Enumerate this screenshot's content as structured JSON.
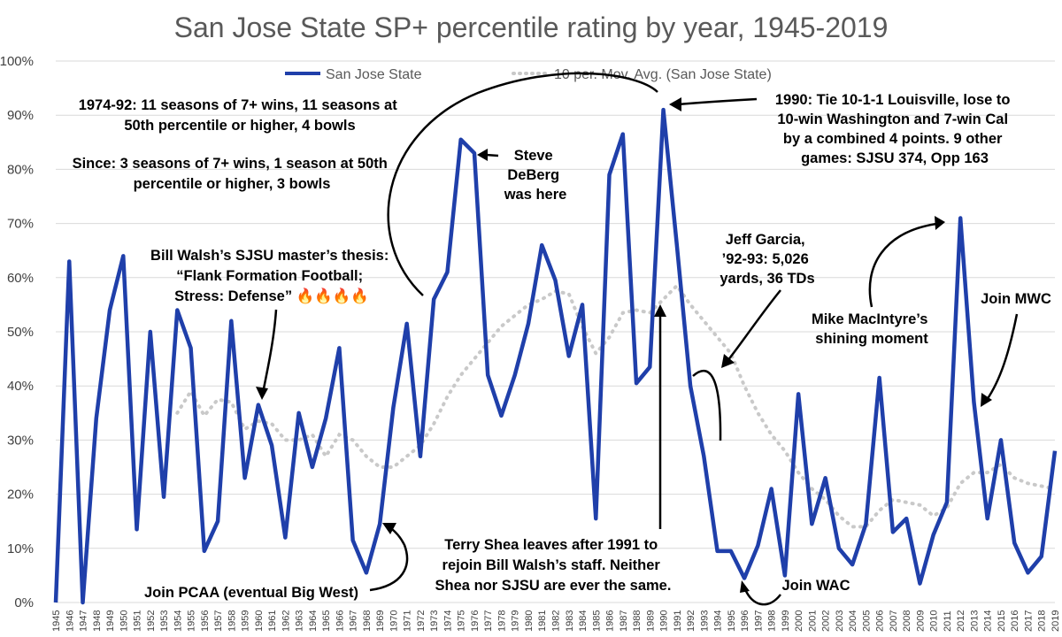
{
  "chart_data": {
    "type": "line",
    "title": "San Jose State SP+ percentile rating by year, 1945-2019",
    "xlabel": "",
    "ylabel": "",
    "ylim": [
      0,
      100
    ],
    "yticks": [
      "0%",
      "10%",
      "20%",
      "30%",
      "40%",
      "50%",
      "60%",
      "70%",
      "80%",
      "90%",
      "100%"
    ],
    "categories": [
      "1945",
      "1946",
      "1947",
      "1948",
      "1949",
      "1950",
      "1951",
      "1952",
      "1953",
      "1954",
      "1955",
      "1956",
      "1957",
      "1958",
      "1959",
      "1960",
      "1961",
      "1962",
      "1963",
      "1964",
      "1965",
      "1966",
      "1967",
      "1968",
      "1969",
      "1970",
      "1971",
      "1972",
      "1973",
      "1974",
      "1975",
      "1976",
      "1977",
      "1978",
      "1979",
      "1980",
      "1981",
      "1982",
      "1983",
      "1984",
      "1985",
      "1986",
      "1987",
      "1988",
      "1989",
      "1990",
      "1991",
      "1992",
      "1993",
      "1994",
      "1995",
      "1996",
      "1997",
      "1998",
      "1999",
      "2000",
      "2001",
      "2002",
      "2003",
      "2004",
      "2005",
      "2006",
      "2007",
      "2008",
      "2009",
      "2010",
      "2011",
      "2012",
      "2013",
      "2014",
      "2015",
      "2016",
      "2017",
      "2018",
      "2019"
    ],
    "legend": {
      "position": "top",
      "entries": [
        "San Jose State",
        "10 per. Mov. Avg. (San Jose State)"
      ]
    },
    "series": [
      {
        "name": "San Jose State",
        "color": "#1f3faa",
        "style": "solid",
        "values": [
          0,
          63,
          0,
          34,
          54,
          64,
          13.5,
          50,
          19.5,
          54,
          47,
          9.5,
          15,
          52,
          23,
          36.5,
          29,
          12,
          35,
          25,
          34,
          47,
          11.5,
          5.5,
          14.5,
          36,
          51.5,
          27,
          56,
          61,
          85.5,
          83,
          42,
          34.5,
          42,
          51.5,
          66,
          59.5,
          45.5,
          55,
          15.5,
          79,
          86.5,
          40.5,
          43.5,
          91,
          66,
          40,
          27,
          9.5,
          9.5,
          4.5,
          10.5,
          21,
          5,
          38.5,
          14.5,
          23,
          10,
          7,
          14.5,
          41.5,
          13,
          15.5,
          3.5,
          12.5,
          18.5,
          71,
          37,
          15.5,
          30,
          11,
          5.5,
          8.5,
          28
        ]
      },
      {
        "name": "10 per. Mov. Avg. (San Jose State)",
        "color": "#c9c9c9",
        "style": "dotted",
        "values": [
          null,
          null,
          null,
          null,
          null,
          null,
          null,
          null,
          null,
          35,
          39,
          34.5,
          37.5,
          37,
          32,
          33.5,
          33,
          30,
          30,
          31,
          27,
          31,
          30,
          27,
          25,
          25,
          27,
          29,
          33,
          38,
          42,
          45,
          48,
          51,
          53,
          55,
          56,
          57.5,
          57,
          51,
          46,
          49,
          53.5,
          54,
          53.5,
          56,
          58.5,
          55,
          52,
          49,
          46,
          40,
          35,
          31,
          28,
          24,
          21,
          19,
          16,
          14,
          14,
          17,
          19,
          18.5,
          18,
          16,
          17.5,
          22,
          24,
          24,
          25.5,
          23,
          22,
          21.5,
          21
        ]
      }
    ],
    "annotations": [
      {
        "id": "early-stats",
        "lines": [
          "1974-92: 11 seasons of 7+ wins, 11 seasons at",
          "50th percentile or higher, 4 bowls"
        ]
      },
      {
        "id": "since-stats",
        "lines": [
          "Since: 3 seasons of 7+ wins, 1 season at 50th",
          "percentile or higher, 3 bowls"
        ]
      },
      {
        "id": "walsh-thesis",
        "lines": [
          "Bill Walsh’s SJSU master’s thesis:",
          "“Flank Formation Football;",
          "Stress: Defense” 🔥🔥🔥🔥"
        ]
      },
      {
        "id": "deberg",
        "lines": [
          "Steve",
          "DeBerg",
          "was here"
        ]
      },
      {
        "id": "season-1990",
        "lines": [
          "1990: Tie 10-1-1 Louisville, lose to",
          "10-win Washington and 7-win Cal",
          "by a combined 4 points. 9 other",
          "games: SJSU 374, Opp 163"
        ]
      },
      {
        "id": "garcia",
        "lines": [
          "Jeff Garcia,",
          "’92-93: 5,026",
          "yards, 36 TDs"
        ]
      },
      {
        "id": "macintyre",
        "lines": [
          "Mike MacIntyre’s",
          "shining moment"
        ]
      },
      {
        "id": "join-mwc",
        "lines": [
          "Join MWC"
        ]
      },
      {
        "id": "shea",
        "lines": [
          "Terry Shea leaves after 1991 to",
          "rejoin Bill Walsh’s staff. Neither",
          "Shea nor SJSU are ever the same."
        ]
      },
      {
        "id": "join-pcaa",
        "lines": [
          "Join PCAA (eventual Big West)"
        ]
      },
      {
        "id": "join-wac",
        "lines": [
          "Join WAC"
        ]
      }
    ]
  }
}
